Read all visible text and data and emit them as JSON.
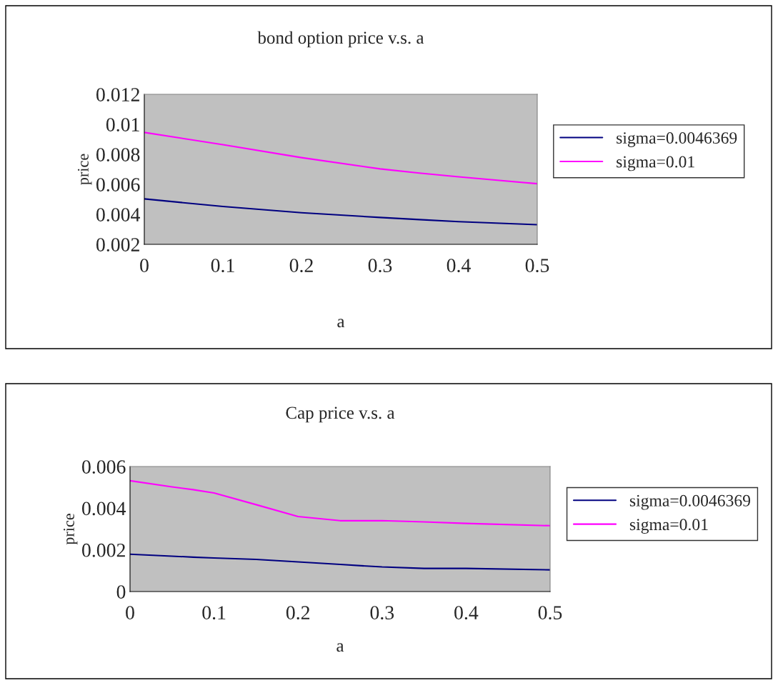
{
  "chart_data": [
    {
      "type": "line",
      "title": "bond option price v.s. a",
      "xlabel": "a",
      "ylabel": "price",
      "x": [
        0,
        0.1,
        0.2,
        0.3,
        0.35,
        0.4,
        0.5
      ],
      "series": [
        {
          "name": "sigma=0.0046369",
          "color": "#000080",
          "values": [
            0.00503,
            0.00452,
            0.00411,
            0.00379,
            0.00365,
            0.00351,
            0.00331
          ]
        },
        {
          "name": "sigma=0.01",
          "color": "#ff00ff",
          "values": [
            0.00946,
            0.00864,
            0.00778,
            0.00703,
            0.00675,
            0.0065,
            0.00604
          ]
        }
      ],
      "xlim": [
        0,
        0.5
      ],
      "xticks": [
        0,
        0.1,
        0.2,
        0.3,
        0.4,
        0.5
      ],
      "ylim": [
        0.002,
        0.012
      ],
      "yticks": [
        0.002,
        0.004,
        0.006,
        0.008,
        0.01,
        0.012
      ],
      "legend": "right",
      "grid": false
    },
    {
      "type": "line",
      "title": "Cap price v.s. a",
      "xlabel": "a",
      "ylabel": "price",
      "x": [
        0,
        0.05,
        0.075,
        0.1,
        0.15,
        0.2,
        0.25,
        0.3,
        0.35,
        0.4,
        0.5
      ],
      "series": [
        {
          "name": "sigma=0.0046369",
          "color": "#000080",
          "values": [
            0.00179,
            0.0017,
            0.00165,
            0.00161,
            0.00154,
            0.00142,
            0.0013,
            0.00118,
            0.00111,
            0.00111,
            0.00104
          ]
        },
        {
          "name": "sigma=0.01",
          "color": "#ff00ff",
          "values": [
            0.00532,
            0.00502,
            0.00489,
            0.00473,
            0.00417,
            0.0036,
            0.0034,
            0.0034,
            0.00334,
            0.00327,
            0.00316
          ]
        }
      ],
      "xlim": [
        0,
        0.5
      ],
      "xticks": [
        0,
        0.1,
        0.2,
        0.3,
        0.4,
        0.5
      ],
      "ylim": [
        0,
        0.006
      ],
      "yticks": [
        0,
        0.002,
        0.004,
        0.006
      ],
      "legend": "right",
      "grid": false
    }
  ]
}
